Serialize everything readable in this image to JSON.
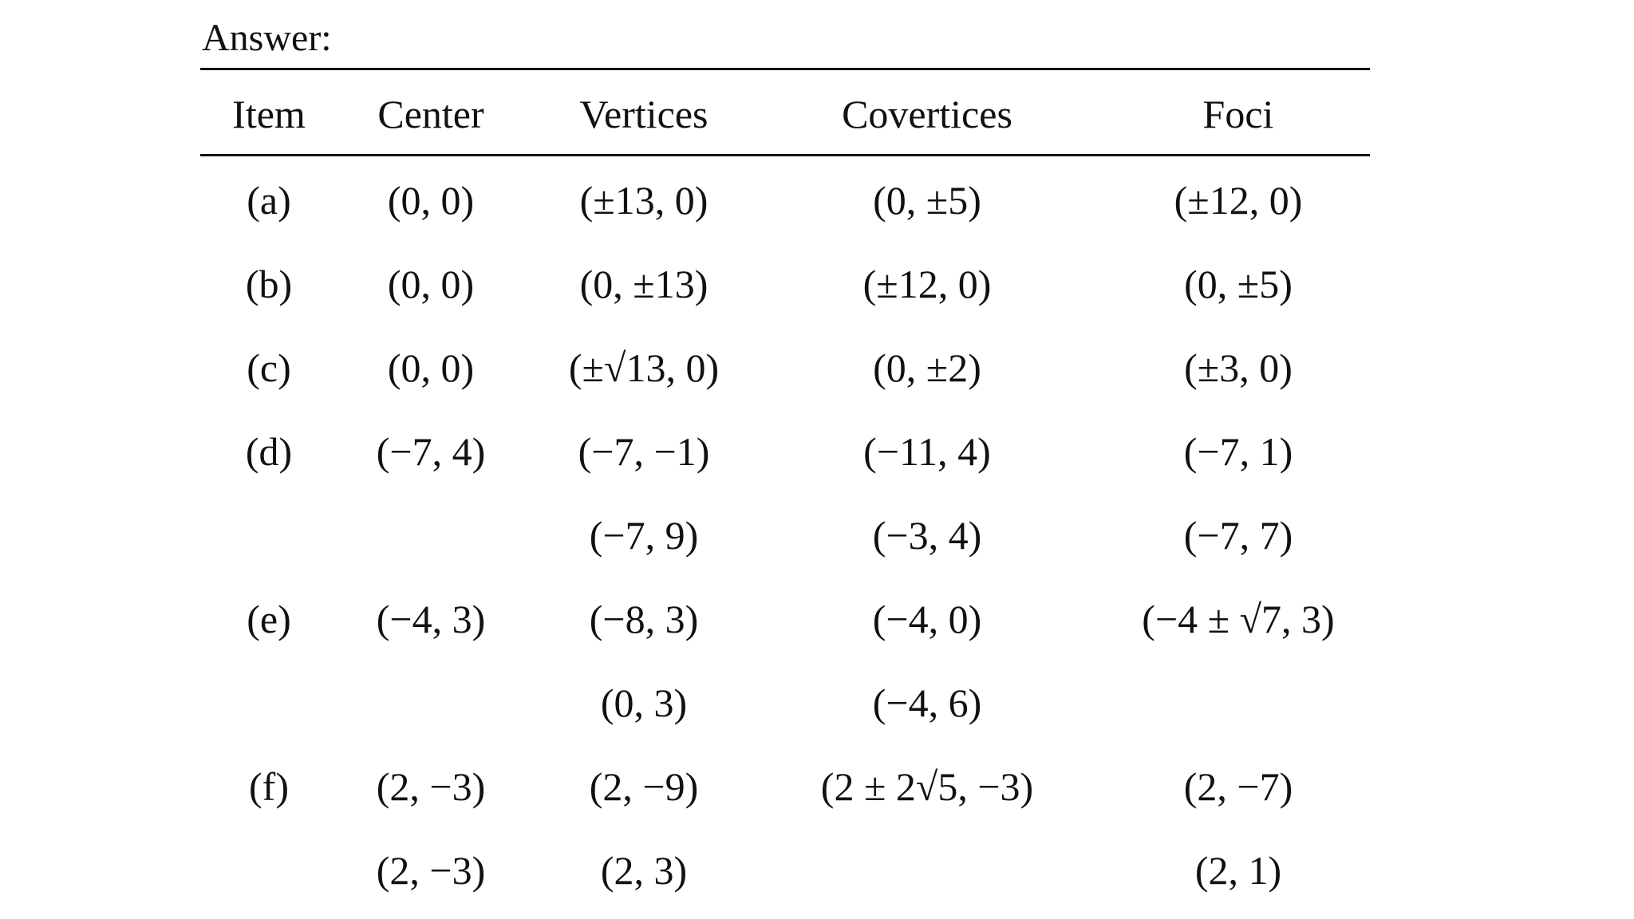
{
  "header": {
    "title": "Answer:"
  },
  "table": {
    "columns": [
      "Item",
      "Center",
      "Vertices",
      "Covertices",
      "Foci"
    ],
    "rows": [
      [
        "(a)",
        "(0, 0)",
        "(±13, 0)",
        "(0, ±5)",
        "(±12, 0)"
      ],
      [
        "(b)",
        "(0, 0)",
        "(0, ±13)",
        "(±12, 0)",
        "(0, ±5)"
      ],
      [
        "(c)",
        "(0, 0)",
        "(±√13, 0)",
        "(0, ±2)",
        "(±3, 0)"
      ],
      [
        "(d)",
        "(−7, 4)",
        "(−7, −1)",
        "(−11, 4)",
        "(−7, 1)"
      ],
      [
        null,
        null,
        "(−7, 9)",
        "(−3, 4)",
        "(−7, 7)"
      ],
      [
        "(e)",
        "(−4, 3)",
        "(−8, 3)",
        "(−4, 0)",
        "(−4 ± √7, 3)"
      ],
      [
        null,
        null,
        "(0, 3)",
        "(−4, 6)",
        null
      ],
      [
        "(f)",
        "(2, −3)",
        "(2, −9)",
        "(2 ± 2√5, −3)",
        "(2, −7)"
      ],
      [
        null,
        "(2, −3)",
        "(2, 3)",
        null,
        "(2, 1)"
      ]
    ]
  }
}
